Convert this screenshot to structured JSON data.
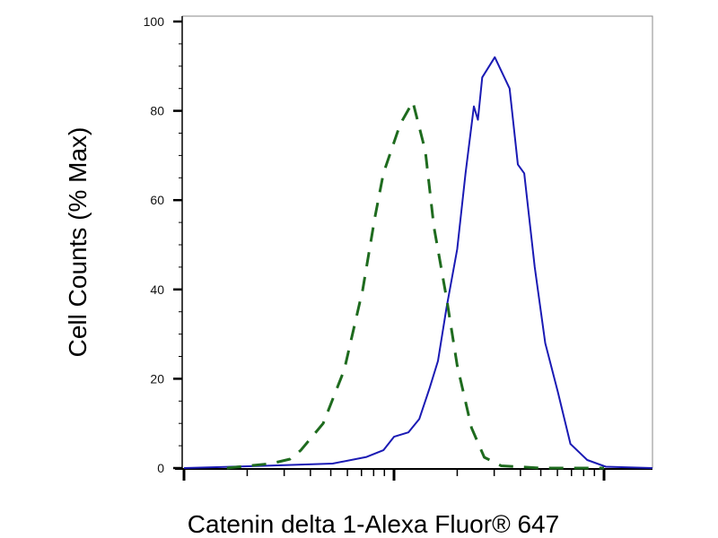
{
  "chart_data": {
    "type": "line",
    "title": "",
    "xlabel": "Catenin delta 1-Alexa Fluor® 647",
    "ylabel": "Cell Counts (% Max)",
    "xscale": "log",
    "xlim": [
      1,
      170
    ],
    "ylim": [
      0,
      100
    ],
    "yticks": [
      0,
      20,
      40,
      60,
      80,
      100
    ],
    "ytick_labels": [
      "0",
      "20",
      "40",
      "60",
      "80",
      "100"
    ],
    "xtick_labels": [],
    "grid": false,
    "legend": "none",
    "series": [
      {
        "style": "solid",
        "color": "#1a1ab4",
        "x": [
          1,
          2.4,
          5.1,
          7.4,
          8.9,
          10,
          11.7,
          13.2,
          14.8,
          16.2,
          17.8,
          20,
          21.9,
          24,
          25.1,
          26.3,
          30.2,
          35.5,
          38.9,
          41.7,
          46.8,
          52.5,
          60.3,
          69.2,
          83.2,
          102,
          170
        ],
        "y": [
          0,
          0.5,
          1,
          2.5,
          4,
          7,
          8,
          11,
          18,
          24,
          36,
          49,
          66,
          81,
          78,
          87.5,
          92,
          85,
          68,
          66,
          45,
          28,
          17,
          5.4,
          1.8,
          0.3,
          0
        ]
      },
      {
        "style": "dashed",
        "color": "#1e6b1e",
        "x": [
          1.6,
          2.6,
          3.2,
          3.6,
          4.6,
          5.8,
          7.1,
          8.1,
          8.9,
          10.7,
          12.3,
          14.1,
          15.5,
          17.8,
          20,
          23.4,
          26.9,
          32.4,
          50,
          100
        ],
        "y": [
          0,
          1,
          2,
          4,
          10,
          22,
          40,
          56,
          66,
          77,
          82,
          71,
          54,
          38,
          23,
          9,
          2.4,
          0.5,
          0,
          0
        ]
      }
    ]
  }
}
